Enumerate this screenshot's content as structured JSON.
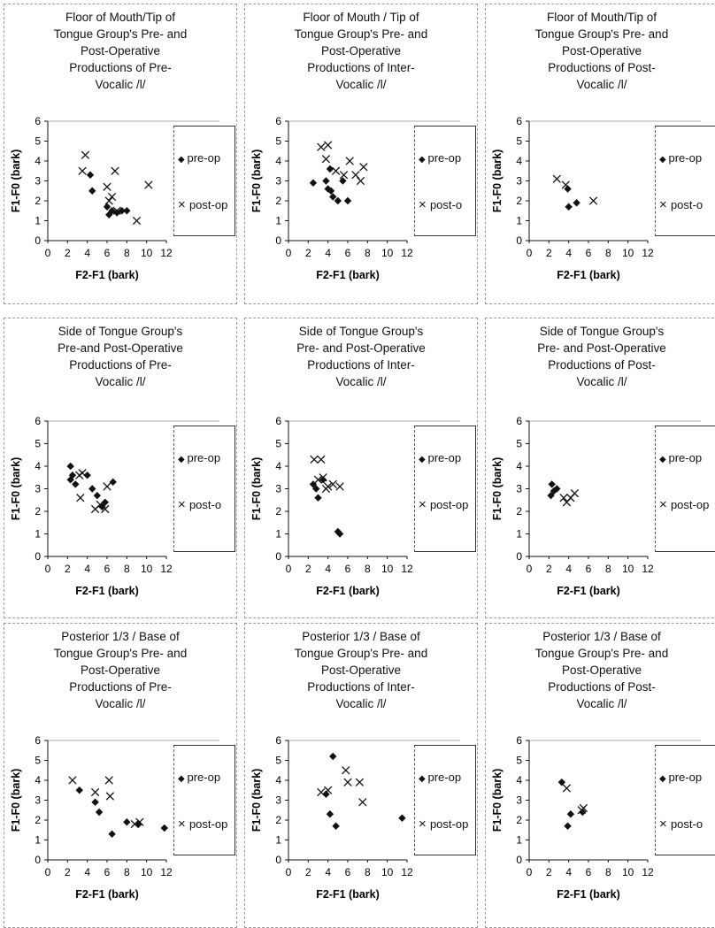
{
  "colors": {
    "marker": "#111111",
    "axis": "#111111",
    "border": "#9a9a9a"
  },
  "chart_data": [
    {
      "type": "scatter",
      "title": [
        "Floor of Mouth/Tip of",
        "Tongue Group's Pre- and",
        "Post-Operative",
        "Productions of Pre-",
        "Vocalic /l/"
      ],
      "xlabel": "F2-F1 (bark)",
      "ylabel": "F1-F0 (bark)",
      "xlim": [
        0,
        12
      ],
      "ylim": [
        0,
        6
      ],
      "xticks": [
        "0",
        "2",
        "4",
        "6",
        "8",
        "10",
        "12"
      ],
      "yticks": [
        "0",
        "1",
        "2",
        "3",
        "4",
        "5",
        "6"
      ],
      "legend": [
        "pre-op",
        "post-op"
      ],
      "series": [
        {
          "name": "pre-op",
          "marker": "diamond",
          "points": [
            [
              4.3,
              3.3
            ],
            [
              4.5,
              2.5
            ],
            [
              6.0,
              1.7
            ],
            [
              6.5,
              1.5
            ],
            [
              7.0,
              1.4
            ],
            [
              7.5,
              1.5
            ],
            [
              8.0,
              1.5
            ],
            [
              6.2,
              1.3
            ]
          ]
        },
        {
          "name": "post-op",
          "marker": "x",
          "points": [
            [
              3.8,
              4.3
            ],
            [
              3.5,
              3.5
            ],
            [
              6.0,
              2.7
            ],
            [
              6.5,
              2.2
            ],
            [
              6.8,
              3.5
            ],
            [
              6.2,
              2.0
            ],
            [
              7.0,
              1.5
            ],
            [
              9.0,
              1.0
            ],
            [
              10.2,
              2.8
            ]
          ]
        }
      ]
    },
    {
      "type": "scatter",
      "title": [
        "Floor of Mouth / Tip of",
        "Tongue Group's Pre- and",
        "Post-Operative",
        "Productions of Inter-",
        "Vocalic /l/"
      ],
      "xlabel": "F2-F1 (bark)",
      "ylabel": "F1-F0 (bark)",
      "xlim": [
        0,
        12
      ],
      "ylim": [
        0,
        6
      ],
      "xticks": [
        "0",
        "2",
        "4",
        "6",
        "8",
        "10",
        "12"
      ],
      "yticks": [
        "0",
        "1",
        "2",
        "3",
        "4",
        "5",
        "6"
      ],
      "legend": [
        "pre-op",
        "post-o"
      ],
      "series": [
        {
          "name": "pre-op",
          "marker": "diamond",
          "points": [
            [
              2.5,
              2.9
            ],
            [
              3.8,
              3.0
            ],
            [
              4.2,
              3.6
            ],
            [
              4.0,
              2.6
            ],
            [
              4.5,
              2.2
            ],
            [
              5.0,
              2.0
            ],
            [
              5.5,
              3.0
            ],
            [
              6.0,
              2.0
            ],
            [
              4.3,
              2.5
            ]
          ]
        },
        {
          "name": "post-o",
          "marker": "x",
          "points": [
            [
              3.3,
              4.7
            ],
            [
              4.0,
              4.8
            ],
            [
              3.8,
              4.1
            ],
            [
              4.8,
              3.5
            ],
            [
              5.6,
              3.3
            ],
            [
              6.2,
              4.0
            ],
            [
              6.8,
              3.3
            ],
            [
              7.6,
              3.7
            ],
            [
              7.3,
              3.0
            ]
          ]
        }
      ]
    },
    {
      "type": "scatter",
      "title": [
        "Floor of Mouth/Tip of",
        "Tongue Group's Pre- and",
        "Post-Operative",
        "Productions  of Post-",
        "Vocalic /l/"
      ],
      "xlabel": "F2-F1 (bark)",
      "ylabel": "F1-F0 (bark)",
      "xlim": [
        0,
        12
      ],
      "ylim": [
        0,
        6
      ],
      "xticks": [
        "0",
        "2",
        "4",
        "6",
        "8",
        "10",
        "12"
      ],
      "yticks": [
        "0",
        "1",
        "2",
        "3",
        "4",
        "5",
        "6"
      ],
      "legend": [
        "pre-op",
        "post-o"
      ],
      "series": [
        {
          "name": "pre-op",
          "marker": "diamond",
          "points": [
            [
              3.9,
              2.6
            ],
            [
              4.0,
              1.7
            ],
            [
              4.8,
              1.9
            ]
          ]
        },
        {
          "name": "post-o",
          "marker": "x",
          "points": [
            [
              2.8,
              3.1
            ],
            [
              3.7,
              2.8
            ],
            [
              6.5,
              2.0
            ]
          ]
        }
      ]
    },
    {
      "type": "scatter",
      "title": [
        "Side of Tongue Group's",
        "Pre-and Post-Operative",
        "Productions of Pre-",
        "Vocalic /l/"
      ],
      "xlabel": "F2-F1 (bark)",
      "ylabel": "F1-F0 (bark)",
      "xlim": [
        0,
        12
      ],
      "ylim": [
        0,
        6
      ],
      "xticks": [
        "0",
        "2",
        "4",
        "6",
        "8",
        "10",
        "12"
      ],
      "yticks": [
        "0",
        "1",
        "2",
        "3",
        "4",
        "5",
        "6"
      ],
      "legend": [
        "pre-op",
        "post-o"
      ],
      "series": [
        {
          "name": "pre-op",
          "marker": "diamond",
          "points": [
            [
              2.3,
              4.0
            ],
            [
              2.5,
              3.6
            ],
            [
              2.8,
              3.2
            ],
            [
              4.0,
              3.6
            ],
            [
              4.5,
              3.0
            ],
            [
              5.0,
              2.7
            ],
            [
              5.5,
              2.2
            ],
            [
              5.8,
              2.4
            ],
            [
              6.6,
              3.3
            ],
            [
              2.3,
              3.4
            ]
          ]
        },
        {
          "name": "post-o",
          "marker": "x",
          "points": [
            [
              3.2,
              3.6
            ],
            [
              3.5,
              3.7
            ],
            [
              3.3,
              2.6
            ],
            [
              4.8,
              2.1
            ],
            [
              5.3,
              2.3
            ],
            [
              5.8,
              2.1
            ],
            [
              6.0,
              3.1
            ]
          ]
        }
      ]
    },
    {
      "type": "scatter",
      "title": [
        "Side of Tongue Group's",
        "Pre- and Post-Operative",
        "Productions of Inter-",
        "Vocalic /l/"
      ],
      "xlabel": "F2-F1 (bark)",
      "ylabel": "F1-F0 (bark)",
      "xlim": [
        0,
        12
      ],
      "ylim": [
        0,
        6
      ],
      "xticks": [
        "0",
        "2",
        "4",
        "6",
        "8",
        "10",
        "12"
      ],
      "yticks": [
        "0",
        "1",
        "2",
        "3",
        "4",
        "5",
        "6"
      ],
      "legend": [
        "pre-op",
        "post-op"
      ],
      "series": [
        {
          "name": "pre-op",
          "marker": "diamond",
          "points": [
            [
              2.5,
              3.2
            ],
            [
              2.8,
              3.0
            ],
            [
              3.0,
              2.6
            ],
            [
              3.5,
              3.4
            ],
            [
              5.0,
              1.1
            ],
            [
              5.2,
              1.0
            ]
          ]
        },
        {
          "name": "post-op",
          "marker": "x",
          "points": [
            [
              2.6,
              4.3
            ],
            [
              3.3,
              4.3
            ],
            [
              3.0,
              3.4
            ],
            [
              3.5,
              3.5
            ],
            [
              4.0,
              3.1
            ],
            [
              4.5,
              3.2
            ],
            [
              5.2,
              3.1
            ],
            [
              3.8,
              3.0
            ]
          ]
        }
      ]
    },
    {
      "type": "scatter",
      "title": [
        "Side of Tongue Group's",
        "Pre- and Post-Operative",
        "Productions of Post-",
        "Vocalic /l/"
      ],
      "xlabel": "F2-F1 (bark)",
      "ylabel": "F1-F0 (bark)",
      "xlim": [
        0,
        12
      ],
      "ylim": [
        0,
        6
      ],
      "xticks": [
        "0",
        "2",
        "4",
        "6",
        "8",
        "10",
        "12"
      ],
      "yticks": [
        "0",
        "1",
        "2",
        "3",
        "4",
        "5",
        "6"
      ],
      "legend": [
        "pre-op",
        "post-op"
      ],
      "series": [
        {
          "name": "pre-op",
          "marker": "diamond",
          "points": [
            [
              2.3,
              3.2
            ],
            [
              2.5,
              2.9
            ],
            [
              2.2,
              2.7
            ],
            [
              2.8,
              3.0
            ]
          ]
        },
        {
          "name": "post-op",
          "marker": "x",
          "points": [
            [
              3.5,
              2.6
            ],
            [
              4.2,
              2.6
            ],
            [
              4.6,
              2.8
            ],
            [
              3.8,
              2.4
            ]
          ]
        }
      ]
    },
    {
      "type": "scatter",
      "title": [
        "Posterior 1/3 / Base of",
        "Tongue Group's Pre- and",
        "Post-Operative",
        "Productions of Pre-",
        "Vocalic /l/"
      ],
      "xlabel": "F2-F1 (bark)",
      "ylabel": "F1-F0 (bark)",
      "xlim": [
        0,
        12
      ],
      "ylim": [
        0,
        6
      ],
      "xticks": [
        "0",
        "2",
        "4",
        "6",
        "8",
        "10",
        "12"
      ],
      "yticks": [
        "0",
        "1",
        "2",
        "3",
        "4",
        "5",
        "6"
      ],
      "legend": [
        "pre-op",
        "post-op"
      ],
      "series": [
        {
          "name": "pre-op",
          "marker": "diamond",
          "points": [
            [
              3.2,
              3.5
            ],
            [
              4.8,
              2.9
            ],
            [
              5.2,
              2.4
            ],
            [
              6.5,
              1.3
            ],
            [
              8.0,
              1.9
            ],
            [
              9.2,
              1.8
            ],
            [
              11.8,
              1.6
            ]
          ]
        },
        {
          "name": "post-op",
          "marker": "x",
          "points": [
            [
              2.5,
              4.0
            ],
            [
              4.8,
              3.4
            ],
            [
              6.2,
              4.0
            ],
            [
              6.3,
              3.2
            ],
            [
              8.8,
              1.8
            ],
            [
              9.3,
              1.9
            ]
          ]
        }
      ]
    },
    {
      "type": "scatter",
      "title": [
        "Posterior 1/3 / Base of",
        "Tongue Group's Pre- and",
        "Post-Operative",
        "Productions  of Inter-",
        "Vocalic /l/"
      ],
      "xlabel": "F2-F1 (bark)",
      "ylabel": "F1-F0 (bark)",
      "xlim": [
        0,
        12
      ],
      "ylim": [
        0,
        6
      ],
      "xticks": [
        "0",
        "2",
        "4",
        "6",
        "8",
        "10",
        "12"
      ],
      "yticks": [
        "0",
        "1",
        "2",
        "3",
        "4",
        "5",
        "6"
      ],
      "legend": [
        "pre-op",
        "post-op"
      ],
      "series": [
        {
          "name": "pre-op",
          "marker": "diamond",
          "points": [
            [
              4.5,
              5.2
            ],
            [
              3.8,
              3.3
            ],
            [
              4.2,
              2.3
            ],
            [
              4.8,
              1.7
            ],
            [
              11.5,
              2.1
            ]
          ]
        },
        {
          "name": "post-op",
          "marker": "x",
          "points": [
            [
              3.3,
              3.4
            ],
            [
              4.0,
              3.5
            ],
            [
              5.8,
              4.5
            ],
            [
              6.0,
              3.9
            ],
            [
              7.2,
              3.9
            ],
            [
              7.5,
              2.9
            ]
          ]
        }
      ]
    },
    {
      "type": "scatter",
      "title": [
        "Posterior 1/3 / Base of",
        "Tongue Group's Pre- and",
        "Post-Operative",
        "Productions  of Post-",
        "Vocalic /l/"
      ],
      "xlabel": "F2-F1 (bark)",
      "ylabel": "F1-F0 (bark)",
      "xlim": [
        0,
        12
      ],
      "ylim": [
        0,
        6
      ],
      "xticks": [
        "0",
        "2",
        "4",
        "6",
        "8",
        "10",
        "12"
      ],
      "yticks": [
        "0",
        "1",
        "2",
        "3",
        "4",
        "5",
        "6"
      ],
      "legend": [
        "pre-op",
        "post-o"
      ],
      "series": [
        {
          "name": "pre-op",
          "marker": "diamond",
          "points": [
            [
              3.3,
              3.9
            ],
            [
              3.9,
              1.7
            ],
            [
              4.2,
              2.3
            ],
            [
              5.4,
              2.4
            ]
          ]
        },
        {
          "name": "post-o",
          "marker": "x",
          "points": [
            [
              3.8,
              3.6
            ],
            [
              5.3,
              2.5
            ],
            [
              5.5,
              2.6
            ]
          ]
        }
      ]
    }
  ]
}
